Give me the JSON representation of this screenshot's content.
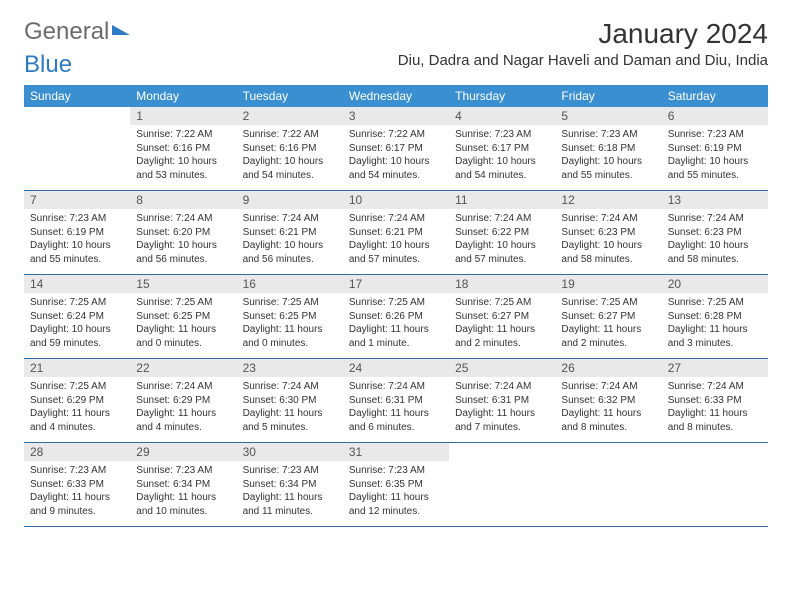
{
  "brand": {
    "general": "General",
    "blue": "Blue"
  },
  "title": "January 2024",
  "location": "Diu, Dadra and Nagar Haveli and Daman and Diu, India",
  "colors": {
    "header_bg": "#3a8fd0",
    "header_text": "#ffffff",
    "daynum_bg": "#e9e9e9",
    "row_border": "#2d6ea6",
    "brand_accent": "#2d7bc3",
    "body_text": "#333333"
  },
  "weekdays": [
    "Sunday",
    "Monday",
    "Tuesday",
    "Wednesday",
    "Thursday",
    "Friday",
    "Saturday"
  ],
  "weeks": [
    [
      null,
      {
        "n": "1",
        "sr": "Sunrise: 7:22 AM",
        "ss": "Sunset: 6:16 PM",
        "d1": "Daylight: 10 hours",
        "d2": "and 53 minutes."
      },
      {
        "n": "2",
        "sr": "Sunrise: 7:22 AM",
        "ss": "Sunset: 6:16 PM",
        "d1": "Daylight: 10 hours",
        "d2": "and 54 minutes."
      },
      {
        "n": "3",
        "sr": "Sunrise: 7:22 AM",
        "ss": "Sunset: 6:17 PM",
        "d1": "Daylight: 10 hours",
        "d2": "and 54 minutes."
      },
      {
        "n": "4",
        "sr": "Sunrise: 7:23 AM",
        "ss": "Sunset: 6:17 PM",
        "d1": "Daylight: 10 hours",
        "d2": "and 54 minutes."
      },
      {
        "n": "5",
        "sr": "Sunrise: 7:23 AM",
        "ss": "Sunset: 6:18 PM",
        "d1": "Daylight: 10 hours",
        "d2": "and 55 minutes."
      },
      {
        "n": "6",
        "sr": "Sunrise: 7:23 AM",
        "ss": "Sunset: 6:19 PM",
        "d1": "Daylight: 10 hours",
        "d2": "and 55 minutes."
      }
    ],
    [
      {
        "n": "7",
        "sr": "Sunrise: 7:23 AM",
        "ss": "Sunset: 6:19 PM",
        "d1": "Daylight: 10 hours",
        "d2": "and 55 minutes."
      },
      {
        "n": "8",
        "sr": "Sunrise: 7:24 AM",
        "ss": "Sunset: 6:20 PM",
        "d1": "Daylight: 10 hours",
        "d2": "and 56 minutes."
      },
      {
        "n": "9",
        "sr": "Sunrise: 7:24 AM",
        "ss": "Sunset: 6:21 PM",
        "d1": "Daylight: 10 hours",
        "d2": "and 56 minutes."
      },
      {
        "n": "10",
        "sr": "Sunrise: 7:24 AM",
        "ss": "Sunset: 6:21 PM",
        "d1": "Daylight: 10 hours",
        "d2": "and 57 minutes."
      },
      {
        "n": "11",
        "sr": "Sunrise: 7:24 AM",
        "ss": "Sunset: 6:22 PM",
        "d1": "Daylight: 10 hours",
        "d2": "and 57 minutes."
      },
      {
        "n": "12",
        "sr": "Sunrise: 7:24 AM",
        "ss": "Sunset: 6:23 PM",
        "d1": "Daylight: 10 hours",
        "d2": "and 58 minutes."
      },
      {
        "n": "13",
        "sr": "Sunrise: 7:24 AM",
        "ss": "Sunset: 6:23 PM",
        "d1": "Daylight: 10 hours",
        "d2": "and 58 minutes."
      }
    ],
    [
      {
        "n": "14",
        "sr": "Sunrise: 7:25 AM",
        "ss": "Sunset: 6:24 PM",
        "d1": "Daylight: 10 hours",
        "d2": "and 59 minutes."
      },
      {
        "n": "15",
        "sr": "Sunrise: 7:25 AM",
        "ss": "Sunset: 6:25 PM",
        "d1": "Daylight: 11 hours",
        "d2": "and 0 minutes."
      },
      {
        "n": "16",
        "sr": "Sunrise: 7:25 AM",
        "ss": "Sunset: 6:25 PM",
        "d1": "Daylight: 11 hours",
        "d2": "and 0 minutes."
      },
      {
        "n": "17",
        "sr": "Sunrise: 7:25 AM",
        "ss": "Sunset: 6:26 PM",
        "d1": "Daylight: 11 hours",
        "d2": "and 1 minute."
      },
      {
        "n": "18",
        "sr": "Sunrise: 7:25 AM",
        "ss": "Sunset: 6:27 PM",
        "d1": "Daylight: 11 hours",
        "d2": "and 2 minutes."
      },
      {
        "n": "19",
        "sr": "Sunrise: 7:25 AM",
        "ss": "Sunset: 6:27 PM",
        "d1": "Daylight: 11 hours",
        "d2": "and 2 minutes."
      },
      {
        "n": "20",
        "sr": "Sunrise: 7:25 AM",
        "ss": "Sunset: 6:28 PM",
        "d1": "Daylight: 11 hours",
        "d2": "and 3 minutes."
      }
    ],
    [
      {
        "n": "21",
        "sr": "Sunrise: 7:25 AM",
        "ss": "Sunset: 6:29 PM",
        "d1": "Daylight: 11 hours",
        "d2": "and 4 minutes."
      },
      {
        "n": "22",
        "sr": "Sunrise: 7:24 AM",
        "ss": "Sunset: 6:29 PM",
        "d1": "Daylight: 11 hours",
        "d2": "and 4 minutes."
      },
      {
        "n": "23",
        "sr": "Sunrise: 7:24 AM",
        "ss": "Sunset: 6:30 PM",
        "d1": "Daylight: 11 hours",
        "d2": "and 5 minutes."
      },
      {
        "n": "24",
        "sr": "Sunrise: 7:24 AM",
        "ss": "Sunset: 6:31 PM",
        "d1": "Daylight: 11 hours",
        "d2": "and 6 minutes."
      },
      {
        "n": "25",
        "sr": "Sunrise: 7:24 AM",
        "ss": "Sunset: 6:31 PM",
        "d1": "Daylight: 11 hours",
        "d2": "and 7 minutes."
      },
      {
        "n": "26",
        "sr": "Sunrise: 7:24 AM",
        "ss": "Sunset: 6:32 PM",
        "d1": "Daylight: 11 hours",
        "d2": "and 8 minutes."
      },
      {
        "n": "27",
        "sr": "Sunrise: 7:24 AM",
        "ss": "Sunset: 6:33 PM",
        "d1": "Daylight: 11 hours",
        "d2": "and 8 minutes."
      }
    ],
    [
      {
        "n": "28",
        "sr": "Sunrise: 7:23 AM",
        "ss": "Sunset: 6:33 PM",
        "d1": "Daylight: 11 hours",
        "d2": "and 9 minutes."
      },
      {
        "n": "29",
        "sr": "Sunrise: 7:23 AM",
        "ss": "Sunset: 6:34 PM",
        "d1": "Daylight: 11 hours",
        "d2": "and 10 minutes."
      },
      {
        "n": "30",
        "sr": "Sunrise: 7:23 AM",
        "ss": "Sunset: 6:34 PM",
        "d1": "Daylight: 11 hours",
        "d2": "and 11 minutes."
      },
      {
        "n": "31",
        "sr": "Sunrise: 7:23 AM",
        "ss": "Sunset: 6:35 PM",
        "d1": "Daylight: 11 hours",
        "d2": "and 12 minutes."
      },
      null,
      null,
      null
    ]
  ]
}
